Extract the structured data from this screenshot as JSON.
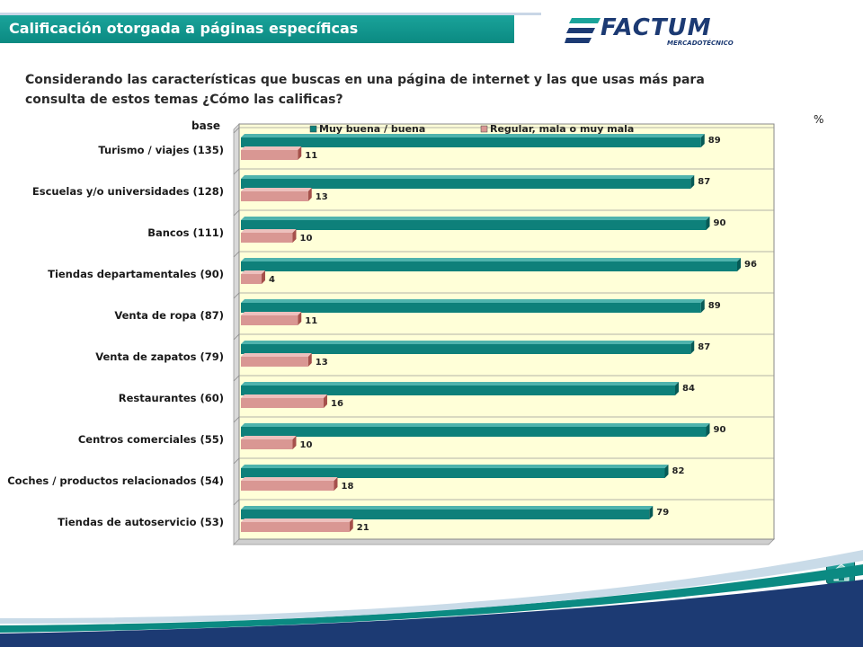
{
  "header": {
    "title": "Calificación otorgada a páginas específicas",
    "logo_text": "FACTUM",
    "logo_subtext": "MERCADOTÉCNICO"
  },
  "question": "Considerando las características que buscas en una página de internet y las que usas más para consulta de estos temas ¿Cómo las calificas?",
  "percent_symbol": "%",
  "base_label": "base",
  "page_number": "16",
  "colors": {
    "accent": "#0b8a82",
    "series_good": "#0e807a",
    "series_bad": "#d99793",
    "plot_bg": "#ffffd8",
    "logo": "#1c3a73"
  },
  "chart_data": {
    "type": "bar",
    "orientation": "horizontal",
    "categories": [
      "Turismo / viajes (135)",
      "Escuelas y/o universidades (128)",
      "Bancos (111)",
      "Tiendas departamentales (90)",
      "Venta de ropa (87)",
      "Venta de zapatos (79)",
      "Restaurantes (60)",
      "Centros comerciales (55)",
      "Coches / productos relacionados (54)",
      "Tiendas de autoservicio (53)"
    ],
    "series": [
      {
        "name": "Muy buena / buena",
        "values": [
          89,
          87,
          90,
          96,
          89,
          87,
          84,
          90,
          82,
          79
        ]
      },
      {
        "name": "Regular, mala o muy mala",
        "values": [
          11,
          13,
          10,
          4,
          11,
          13,
          16,
          10,
          18,
          21
        ]
      }
    ],
    "xlim": [
      0,
      100
    ],
    "legend_position": "top",
    "grid": "horizontal separators",
    "data_labels": true
  }
}
